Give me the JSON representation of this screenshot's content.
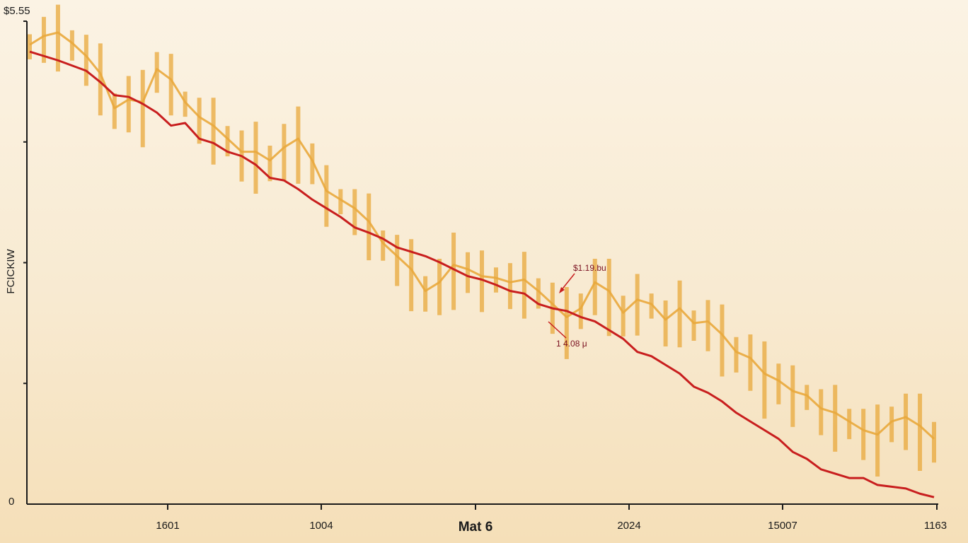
{
  "chart_data": {
    "type": "line",
    "ylabel": "FCICKIW",
    "xlabel": "Mat 6",
    "y_top_label": "$5.55",
    "y_zero_label": "0",
    "x_tick_labels": [
      "1601",
      "1004",
      "2024",
      "15007",
      "1163"
    ],
    "ylim": [
      0,
      5.55
    ],
    "grid": false,
    "colors": {
      "trend": "#c81e1e",
      "price": "#e9a93c",
      "axis": "#1a1a1a"
    },
    "series": [
      {
        "name": "",
        "role": "price",
        "x": [
          0,
          1,
          2,
          3,
          4,
          5,
          6,
          7,
          8,
          9,
          10,
          11,
          12,
          13,
          14,
          15,
          16,
          17,
          18,
          19,
          20,
          21,
          22,
          23,
          24,
          25,
          26,
          27,
          28,
          29,
          30,
          31,
          32,
          33,
          34,
          35,
          36,
          37,
          38,
          39,
          40,
          41,
          42,
          43,
          44,
          45,
          46,
          47,
          48,
          49,
          50,
          51,
          52,
          53,
          54,
          55,
          56,
          57,
          58,
          59,
          60,
          61,
          62,
          63,
          64
        ],
        "values": [
          5.28,
          5.38,
          5.42,
          5.3,
          5.15,
          4.95,
          4.55,
          4.65,
          4.62,
          5.0,
          4.88,
          4.62,
          4.45,
          4.35,
          4.2,
          4.05,
          4.05,
          3.95,
          4.1,
          4.2,
          3.95,
          3.6,
          3.5,
          3.4,
          3.25,
          3.0,
          2.85,
          2.7,
          2.45,
          2.55,
          2.75,
          2.7,
          2.62,
          2.6,
          2.55,
          2.58,
          2.45,
          2.3,
          2.15,
          2.25,
          2.55,
          2.45,
          2.2,
          2.35,
          2.3,
          2.12,
          2.25,
          2.08,
          2.1,
          1.95,
          1.75,
          1.68,
          1.5,
          1.42,
          1.3,
          1.25,
          1.1,
          1.05,
          0.95,
          0.85,
          0.8,
          0.95,
          1.0,
          0.9,
          0.75
        ]
      },
      {
        "name": "",
        "role": "trend",
        "x": [
          0,
          2,
          4,
          5,
          6,
          7,
          8,
          9,
          10,
          11,
          12,
          13,
          14,
          15,
          16,
          17,
          18,
          19,
          20,
          21,
          22,
          23,
          24,
          25,
          26,
          27,
          28,
          29,
          30,
          31,
          32,
          33,
          34,
          35,
          36,
          37,
          38,
          39,
          40,
          41,
          42,
          43,
          44,
          45,
          46,
          47,
          48,
          49,
          50,
          51,
          52,
          53,
          54,
          55,
          56,
          57,
          58,
          59,
          60,
          61,
          62,
          63,
          64
        ],
        "values": [
          5.2,
          5.1,
          4.98,
          4.85,
          4.7,
          4.68,
          4.6,
          4.5,
          4.35,
          4.38,
          4.2,
          4.15,
          4.05,
          4.0,
          3.9,
          3.75,
          3.72,
          3.62,
          3.5,
          3.4,
          3.3,
          3.18,
          3.12,
          3.05,
          2.95,
          2.9,
          2.85,
          2.78,
          2.7,
          2.62,
          2.58,
          2.52,
          2.45,
          2.42,
          2.3,
          2.25,
          2.22,
          2.15,
          2.1,
          2.0,
          1.9,
          1.75,
          1.7,
          1.6,
          1.5,
          1.35,
          1.28,
          1.18,
          1.05,
          0.95,
          0.85,
          0.75,
          0.6,
          0.52,
          0.4,
          0.35,
          0.3,
          0.3,
          0.22,
          0.2,
          0.18,
          0.12,
          0.08
        ]
      }
    ],
    "annotations": [
      {
        "text": "$1.19.bu",
        "x": 42.3,
        "y": 2.35
      },
      {
        "text": "1 4.08 μ",
        "x": 42.0,
        "y": 1.62
      }
    ]
  }
}
